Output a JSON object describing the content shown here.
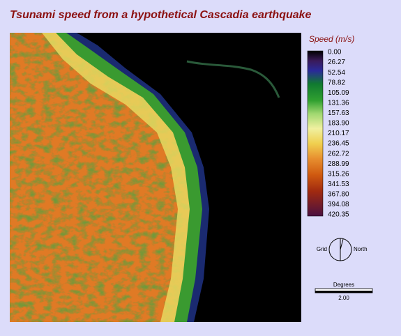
{
  "title": "Tsunami speed from a hypothetical Cascadia earthquake",
  "legend": {
    "title": "Speed (m/s)",
    "labels": [
      "0.00",
      "26.27",
      "52.54",
      "78.82",
      "105.09",
      "131.36",
      "157.63",
      "183.90",
      "210.17",
      "236.45",
      "262.72",
      "288.99",
      "315.26",
      "341.53",
      "367.80",
      "394.08",
      "420.35"
    ]
  },
  "compass": {
    "grid": "Grid",
    "north": "North"
  },
  "scale": {
    "unit": "Degrees",
    "value": "2.00"
  }
}
